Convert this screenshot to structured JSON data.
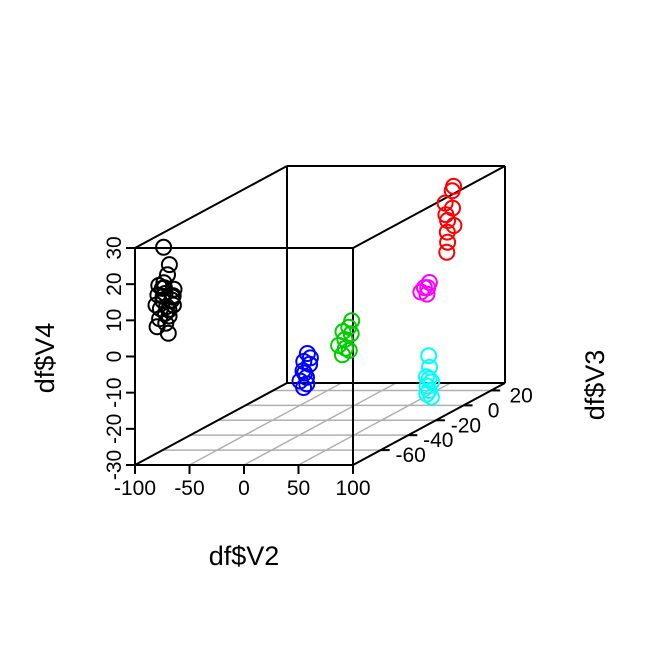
{
  "chart_data": {
    "type": "scatter",
    "x_axis": {
      "label": "df$V2",
      "range": [
        -100,
        100
      ],
      "ticks": [
        -100,
        -50,
        0,
        50,
        100
      ]
    },
    "y_axis": {
      "label": "df$V3",
      "range": [
        -80,
        30
      ],
      "ticks": [
        -60,
        -40,
        -20,
        0,
        20
      ]
    },
    "z_axis": {
      "label": "df$V4",
      "range": [
        -30,
        30
      ],
      "ticks": [
        -30,
        -20,
        -10,
        0,
        10,
        20,
        30
      ]
    },
    "grid": true,
    "legend": "none",
    "series": [
      {
        "color": "#000000",
        "points": [
          [
            -75,
            -78,
            17
          ],
          [
            -78,
            -79,
            13
          ],
          [
            -70,
            -77,
            15
          ],
          [
            -80,
            -76,
            18
          ],
          [
            -72,
            -80,
            12
          ],
          [
            -76,
            -78,
            20
          ],
          [
            -68,
            -78,
            16
          ],
          [
            -82,
            -79,
            14
          ],
          [
            -74,
            -77,
            22
          ],
          [
            -70,
            -79,
            11
          ],
          [
            -78,
            -77,
            16
          ],
          [
            -73,
            -80,
            19
          ],
          [
            -80,
            -78,
            10
          ],
          [
            -66,
            -79,
            14
          ],
          [
            -76,
            -76,
            13
          ],
          [
            -71,
            -78,
            25
          ],
          [
            -79,
            -80,
            17
          ],
          [
            -73,
            -79,
            9
          ],
          [
            -68,
            -77,
            18
          ],
          [
            -77,
            -78,
            15
          ],
          [
            -74,
            -76,
            12
          ],
          [
            -82,
            -77,
            19
          ],
          [
            -69,
            -80,
            13
          ],
          [
            -75,
            -79,
            30
          ],
          [
            -72,
            -78,
            6
          ],
          [
            -81,
            -79,
            8
          ],
          [
            -70,
            -76,
            16
          ]
        ]
      },
      {
        "color": "#0000ff",
        "points": [
          [
            10,
            -44,
            -12
          ],
          [
            12,
            -42,
            -10
          ],
          [
            8,
            -43,
            -9
          ],
          [
            13,
            -45,
            -13
          ],
          [
            9,
            -44,
            -16
          ],
          [
            11,
            -46,
            -11
          ],
          [
            14,
            -43,
            -8
          ],
          [
            7,
            -45,
            -14
          ],
          [
            12,
            -44,
            -15
          ],
          [
            10,
            -42,
            -7
          ]
        ]
      },
      {
        "color": "#00cc00",
        "points": [
          [
            33,
            -33,
            -5
          ],
          [
            36,
            -35,
            -7
          ],
          [
            30,
            -32,
            -3
          ],
          [
            35,
            -30,
            -4
          ],
          [
            32,
            -34,
            -9
          ],
          [
            34,
            -31,
            -2
          ],
          [
            31,
            -36,
            -6
          ],
          [
            37,
            -33,
            -8
          ],
          [
            38,
            -32,
            0
          ]
        ]
      },
      {
        "color": "#ff0000",
        "points": [
          [
            60,
            20,
            17
          ],
          [
            62,
            22,
            20
          ],
          [
            59,
            19,
            22
          ],
          [
            63,
            21,
            25
          ],
          [
            61,
            18,
            19
          ],
          [
            62,
            23,
            15
          ],
          [
            60,
            20,
            11
          ],
          [
            58,
            21,
            8
          ],
          [
            61,
            19,
            14
          ],
          [
            63,
            22,
            26
          ]
        ]
      },
      {
        "color": "#ff00ff",
        "points": [
          [
            73,
            -7,
            4
          ],
          [
            75,
            -5,
            5
          ],
          [
            71,
            -8,
            3
          ],
          [
            74,
            -6,
            2
          ],
          [
            76,
            -7,
            4
          ]
        ]
      },
      {
        "color": "#00ffff",
        "points": [
          [
            84,
            -14,
            -24
          ],
          [
            86,
            -12,
            -21
          ],
          [
            83,
            -13,
            -22
          ],
          [
            85,
            -15,
            -19
          ],
          [
            87,
            -13,
            -25
          ],
          [
            84,
            -12,
            -17
          ],
          [
            86,
            -14,
            -23
          ],
          [
            82,
            -11,
            -14
          ],
          [
            85,
            -13,
            -20
          ]
        ]
      }
    ]
  }
}
